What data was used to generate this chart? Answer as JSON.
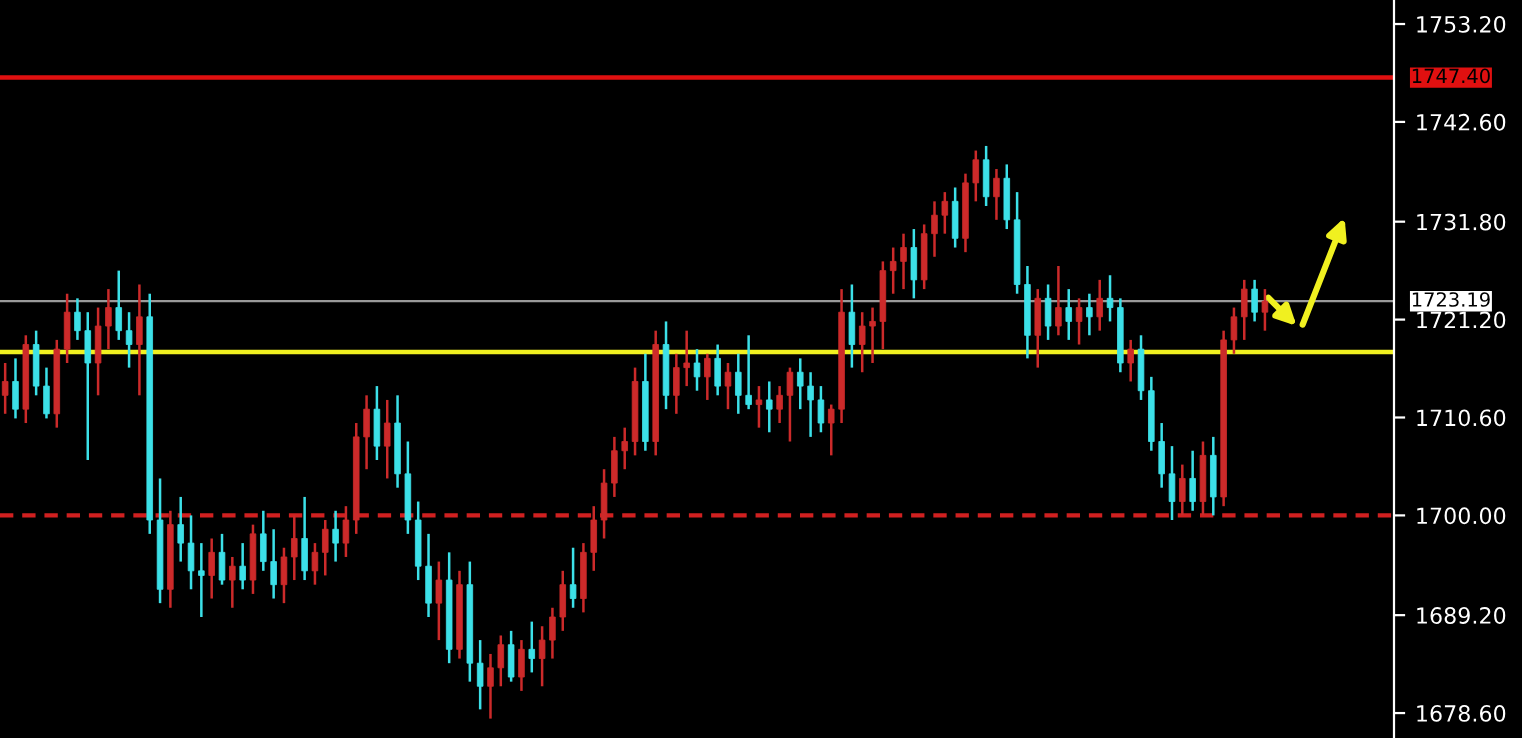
{
  "chart_data": {
    "type": "candlestick",
    "categories": [
      null,
      null,
      null,
      null,
      null,
      null,
      null,
      null,
      null,
      null,
      null,
      null,
      null,
      null,
      null,
      null,
      null,
      null,
      null,
      null,
      null,
      null,
      null,
      null,
      null,
      null,
      null,
      null,
      null,
      null,
      null,
      null,
      null,
      null,
      null,
      null,
      null,
      null,
      null,
      null,
      null,
      null,
      null,
      null,
      null,
      null,
      null,
      null,
      null,
      null,
      null,
      null,
      null,
      null,
      null,
      null,
      null,
      null,
      null,
      null,
      null,
      null,
      null,
      null,
      null,
      null,
      null,
      null,
      null,
      null,
      null,
      null,
      null,
      null,
      null,
      null,
      null,
      null,
      null,
      null,
      null,
      null,
      null,
      null,
      null,
      null,
      null,
      null,
      null,
      null,
      null,
      null,
      null,
      null,
      null,
      null,
      null,
      null,
      null,
      null,
      null,
      null,
      null,
      null,
      null,
      null,
      null,
      null,
      null,
      null,
      null,
      null,
      null,
      null,
      null,
      null,
      null,
      null,
      null,
      null,
      null,
      null,
      null,
      null,
      null,
      null,
      null,
      null,
      null,
      null,
      null,
      null,
      null,
      null,
      null
    ],
    "ohlc": [
      [
        1713.0,
        1716.5,
        1711.0,
        1714.5
      ],
      [
        1714.5,
        1717.0,
        1710.5,
        1711.5
      ],
      [
        1711.5,
        1719.5,
        1710.0,
        1718.5
      ],
      [
        1718.5,
        1720.0,
        1713.0,
        1714.0
      ],
      [
        1714.0,
        1716.0,
        1710.5,
        1711.0
      ],
      [
        1711.0,
        1719.0,
        1709.5,
        1718.0
      ],
      [
        1718.0,
        1724.0,
        1716.5,
        1722.0
      ],
      [
        1722.0,
        1723.5,
        1719.0,
        1720.0
      ],
      [
        1720.0,
        1722.0,
        1706.0,
        1716.5
      ],
      [
        1716.5,
        1722.5,
        1713.0,
        1720.5
      ],
      [
        1720.5,
        1724.5,
        1718.0,
        1722.5
      ],
      [
        1722.5,
        1726.5,
        1719.0,
        1720.0
      ],
      [
        1720.0,
        1722.0,
        1716.0,
        1718.5
      ],
      [
        1718.5,
        1725.0,
        1713.0,
        1721.5
      ],
      [
        1721.5,
        1724.0,
        1698.0,
        1699.5
      ],
      [
        1699.5,
        1704.0,
        1690.5,
        1692.0
      ],
      [
        1692.0,
        1700.5,
        1690.0,
        1699.0
      ],
      [
        1699.0,
        1702.0,
        1695.0,
        1697.0
      ],
      [
        1697.0,
        1700.0,
        1692.0,
        1694.0
      ],
      [
        1694.0,
        1697.0,
        1689.0,
        1693.5
      ],
      [
        1693.5,
        1697.5,
        1691.0,
        1696.0
      ],
      [
        1696.0,
        1698.0,
        1692.5,
        1693.0
      ],
      [
        1693.0,
        1695.5,
        1690.0,
        1694.5
      ],
      [
        1694.5,
        1697.0,
        1692.0,
        1693.0
      ],
      [
        1693.0,
        1699.0,
        1691.5,
        1698.0
      ],
      [
        1698.0,
        1700.5,
        1694.0,
        1695.0
      ],
      [
        1695.0,
        1698.5,
        1691.0,
        1692.5
      ],
      [
        1692.5,
        1696.5,
        1690.5,
        1695.5
      ],
      [
        1695.5,
        1700.0,
        1693.0,
        1697.5
      ],
      [
        1697.5,
        1702.0,
        1693.0,
        1694.0
      ],
      [
        1694.0,
        1697.0,
        1692.5,
        1696.0
      ],
      [
        1696.0,
        1699.5,
        1693.5,
        1698.5
      ],
      [
        1698.5,
        1700.5,
        1695.0,
        1697.0
      ],
      [
        1697.0,
        1701.0,
        1695.5,
        1699.5
      ],
      [
        1699.5,
        1710.0,
        1698.0,
        1708.5
      ],
      [
        1708.5,
        1713.0,
        1705.0,
        1711.5
      ],
      [
        1711.5,
        1714.0,
        1706.0,
        1707.5
      ],
      [
        1707.5,
        1712.5,
        1704.0,
        1710.0
      ],
      [
        1710.0,
        1713.0,
        1703.0,
        1704.5
      ],
      [
        1704.5,
        1708.0,
        1698.0,
        1699.5
      ],
      [
        1699.5,
        1701.5,
        1693.0,
        1694.5
      ],
      [
        1694.5,
        1698.0,
        1689.0,
        1690.5
      ],
      [
        1690.5,
        1695.0,
        1686.5,
        1693.0
      ],
      [
        1693.0,
        1696.0,
        1684.0,
        1685.5
      ],
      [
        1685.5,
        1694.0,
        1684.5,
        1692.5
      ],
      [
        1692.5,
        1695.0,
        1682.0,
        1684.0
      ],
      [
        1684.0,
        1686.5,
        1679.0,
        1681.5
      ],
      [
        1681.5,
        1685.0,
        1678.0,
        1683.5
      ],
      [
        1683.5,
        1687.0,
        1681.5,
        1686.0
      ],
      [
        1686.0,
        1687.5,
        1682.0,
        1682.5
      ],
      [
        1682.5,
        1686.5,
        1681.0,
        1685.5
      ],
      [
        1685.5,
        1688.5,
        1683.0,
        1684.5
      ],
      [
        1684.5,
        1688.0,
        1681.5,
        1686.5
      ],
      [
        1686.5,
        1690.0,
        1684.5,
        1689.0
      ],
      [
        1689.0,
        1694.0,
        1687.5,
        1692.5
      ],
      [
        1692.5,
        1696.5,
        1690.0,
        1691.0
      ],
      [
        1691.0,
        1697.0,
        1689.5,
        1696.0
      ],
      [
        1696.0,
        1701.0,
        1694.0,
        1699.5
      ],
      [
        1699.5,
        1705.0,
        1697.5,
        1703.5
      ],
      [
        1703.5,
        1708.5,
        1702.0,
        1707.0
      ],
      [
        1707.0,
        1709.5,
        1705.0,
        1708.0
      ],
      [
        1708.0,
        1716.0,
        1706.5,
        1714.5
      ],
      [
        1714.5,
        1717.5,
        1707.0,
        1708.0
      ],
      [
        1708.0,
        1720.0,
        1706.5,
        1718.5
      ],
      [
        1718.5,
        1721.0,
        1711.5,
        1713.0
      ],
      [
        1713.0,
        1717.5,
        1711.0,
        1716.0
      ],
      [
        1716.0,
        1720.0,
        1714.0,
        1716.5
      ],
      [
        1716.5,
        1718.0,
        1713.5,
        1715.0
      ],
      [
        1715.0,
        1717.5,
        1712.5,
        1717.0
      ],
      [
        1717.0,
        1718.5,
        1713.0,
        1714.0
      ],
      [
        1714.0,
        1716.5,
        1711.5,
        1715.5
      ],
      [
        1715.5,
        1717.5,
        1711.0,
        1713.0
      ],
      [
        1713.0,
        1719.5,
        1711.5,
        1712.0
      ],
      [
        1712.0,
        1714.0,
        1709.5,
        1712.5
      ],
      [
        1712.5,
        1714.5,
        1709.0,
        1711.5
      ],
      [
        1711.5,
        1714.0,
        1710.0,
        1713.0
      ],
      [
        1713.0,
        1716.0,
        1708.0,
        1715.5
      ],
      [
        1715.5,
        1717.0,
        1711.5,
        1714.0
      ],
      [
        1714.0,
        1715.5,
        1708.5,
        1712.5
      ],
      [
        1712.5,
        1714.0,
        1709.0,
        1710.0
      ],
      [
        1710.0,
        1712.0,
        1706.5,
        1711.5
      ],
      [
        1711.5,
        1724.5,
        1710.0,
        1722.0
      ],
      [
        1722.0,
        1725.0,
        1716.0,
        1718.5
      ],
      [
        1718.5,
        1722.0,
        1715.5,
        1720.5
      ],
      [
        1720.5,
        1722.5,
        1716.5,
        1721.0
      ],
      [
        1721.0,
        1727.5,
        1718.0,
        1726.5
      ],
      [
        1726.5,
        1729.0,
        1724.0,
        1727.5
      ],
      [
        1727.5,
        1730.5,
        1724.5,
        1729.0
      ],
      [
        1729.0,
        1731.0,
        1723.5,
        1725.5
      ],
      [
        1725.5,
        1731.5,
        1724.5,
        1730.5
      ],
      [
        1730.5,
        1734.0,
        1728.0,
        1732.5
      ],
      [
        1732.5,
        1735.0,
        1730.5,
        1734.0
      ],
      [
        1734.0,
        1735.5,
        1729.0,
        1730.0
      ],
      [
        1730.0,
        1737.0,
        1728.5,
        1736.0
      ],
      [
        1736.0,
        1739.5,
        1734.0,
        1738.5
      ],
      [
        1738.5,
        1740.0,
        1733.5,
        1734.5
      ],
      [
        1734.5,
        1737.5,
        1732.0,
        1736.5
      ],
      [
        1736.5,
        1738.0,
        1731.0,
        1732.0
      ],
      [
        1732.0,
        1735.0,
        1724.0,
        1725.0
      ],
      [
        1725.0,
        1727.0,
        1717.0,
        1719.5
      ],
      [
        1719.5,
        1724.5,
        1716.0,
        1723.5
      ],
      [
        1723.5,
        1725.0,
        1719.0,
        1720.5
      ],
      [
        1720.5,
        1727.0,
        1719.5,
        1722.5
      ],
      [
        1722.5,
        1724.5,
        1719.0,
        1721.0
      ],
      [
        1721.0,
        1723.5,
        1718.5,
        1722.5
      ],
      [
        1722.5,
        1724.0,
        1719.5,
        1721.5
      ],
      [
        1721.5,
        1725.5,
        1720.0,
        1723.5
      ],
      [
        1723.5,
        1726.0,
        1721.0,
        1722.5
      ],
      [
        1722.5,
        1723.5,
        1715.5,
        1716.5
      ],
      [
        1716.5,
        1719.0,
        1714.5,
        1718.0
      ],
      [
        1718.0,
        1719.5,
        1712.5,
        1713.5
      ],
      [
        1713.5,
        1715.0,
        1707.0,
        1708.0
      ],
      [
        1708.0,
        1710.0,
        1703.0,
        1704.5
      ],
      [
        1704.5,
        1707.5,
        1699.5,
        1701.5
      ],
      [
        1701.5,
        1705.5,
        1700.0,
        1704.0
      ],
      [
        1704.0,
        1707.0,
        1700.5,
        1701.5
      ],
      [
        1701.5,
        1708.0,
        1700.0,
        1706.5
      ],
      [
        1706.5,
        1708.5,
        1700.0,
        1702.0
      ],
      [
        1702.0,
        1720.0,
        1701.0,
        1719.0
      ],
      [
        1719.0,
        1722.5,
        1717.5,
        1721.5
      ],
      [
        1721.5,
        1725.5,
        1719.0,
        1724.5
      ],
      [
        1724.5,
        1725.5,
        1721.0,
        1722.0
      ],
      [
        1722.0,
        1724.5,
        1720.0,
        1723.19
      ],
      null,
      null,
      null,
      null,
      null,
      null,
      null,
      null,
      null,
      null,
      null,
      null
    ],
    "colors": [
      "#cc2a2a",
      "#3ce0e8",
      "#cc2a2a",
      "#3ce0e8",
      "#3ce0e8",
      "#cc2a2a",
      "#cc2a2a",
      "#3ce0e8",
      "#3ce0e8",
      "#cc2a2a",
      "#cc2a2a",
      "#3ce0e8",
      "#3ce0e8",
      "#cc2a2a",
      "#3ce0e8",
      "#3ce0e8",
      "#cc2a2a",
      "#3ce0e8",
      "#3ce0e8",
      "#3ce0e8",
      "#cc2a2a",
      "#3ce0e8",
      "#cc2a2a",
      "#3ce0e8",
      "#cc2a2a",
      "#3ce0e8",
      "#3ce0e8",
      "#cc2a2a",
      "#cc2a2a",
      "#3ce0e8",
      "#cc2a2a",
      "#cc2a2a",
      "#3ce0e8",
      "#cc2a2a",
      "#cc2a2a",
      "#cc2a2a",
      "#3ce0e8",
      "#cc2a2a",
      "#3ce0e8",
      "#3ce0e8",
      "#3ce0e8",
      "#3ce0e8",
      "#cc2a2a",
      "#3ce0e8",
      "#cc2a2a",
      "#3ce0e8",
      "#3ce0e8",
      "#cc2a2a",
      "#cc2a2a",
      "#3ce0e8",
      "#cc2a2a",
      "#3ce0e8",
      "#cc2a2a",
      "#cc2a2a",
      "#cc2a2a",
      "#3ce0e8",
      "#cc2a2a",
      "#cc2a2a",
      "#cc2a2a",
      "#cc2a2a",
      "#cc2a2a",
      "#cc2a2a",
      "#3ce0e8",
      "#cc2a2a",
      "#3ce0e8",
      "#cc2a2a",
      "#cc2a2a",
      "#3ce0e8",
      "#cc2a2a",
      "#3ce0e8",
      "#cc2a2a",
      "#3ce0e8",
      "#3ce0e8",
      "#cc2a2a",
      "#3ce0e8",
      "#cc2a2a",
      "#cc2a2a",
      "#3ce0e8",
      "#3ce0e8",
      "#3ce0e8",
      "#cc2a2a",
      "#cc2a2a",
      "#3ce0e8",
      "#cc2a2a",
      "#cc2a2a",
      "#cc2a2a",
      "#cc2a2a",
      "#cc2a2a",
      "#3ce0e8",
      "#cc2a2a",
      "#cc2a2a",
      "#cc2a2a",
      "#3ce0e8",
      "#cc2a2a",
      "#cc2a2a",
      "#3ce0e8",
      "#cc2a2a",
      "#3ce0e8",
      "#3ce0e8",
      "#3ce0e8",
      "#cc2a2a",
      "#3ce0e8",
      "#cc2a2a",
      "#3ce0e8",
      "#cc2a2a",
      "#3ce0e8",
      "#cc2a2a",
      "#3ce0e8",
      "#3ce0e8",
      "#cc2a2a",
      "#3ce0e8",
      "#3ce0e8",
      "#3ce0e8",
      "#3ce0e8",
      "#cc2a2a",
      "#3ce0e8",
      "#cc2a2a",
      "#3ce0e8",
      "#cc2a2a",
      "#cc2a2a",
      "#cc2a2a",
      "#3ce0e8",
      "#cc2a2a",
      null,
      null,
      null,
      null,
      null,
      null,
      null,
      null,
      null,
      null,
      null,
      null
    ],
    "ylim": [
      1675.9,
      1755.8
    ],
    "yticks": [
      {
        "value": 1753.2,
        "label": "1753.20"
      },
      {
        "value": 1742.6,
        "label": "1742.60"
      },
      {
        "value": 1731.8,
        "label": "1731.80"
      },
      {
        "value": 1721.2,
        "label": "1721.20"
      },
      {
        "value": 1710.6,
        "label": "1710.60"
      },
      {
        "value": 1700.0,
        "label": "1700.00"
      },
      {
        "value": 1689.2,
        "label": "1689.20"
      },
      {
        "value": 1678.6,
        "label": "1678.60"
      }
    ],
    "tick_labels": "y",
    "grid": false,
    "ref_lines": [
      {
        "axis": "y",
        "value": 1747.4,
        "label": "1747.40",
        "color": "#e01010",
        "line_style": "solid"
      },
      {
        "axis": "y",
        "value": 1723.19,
        "label": "1723.19",
        "color": "#9a9a9a",
        "line_style": "solid"
      },
      {
        "axis": "y",
        "value": 1717.7,
        "color": "#f0f020",
        "line_style": "solid"
      },
      {
        "axis": "y",
        "value": 1700.0,
        "color": "#d02020",
        "line_style": "dashed"
      }
    ]
  }
}
